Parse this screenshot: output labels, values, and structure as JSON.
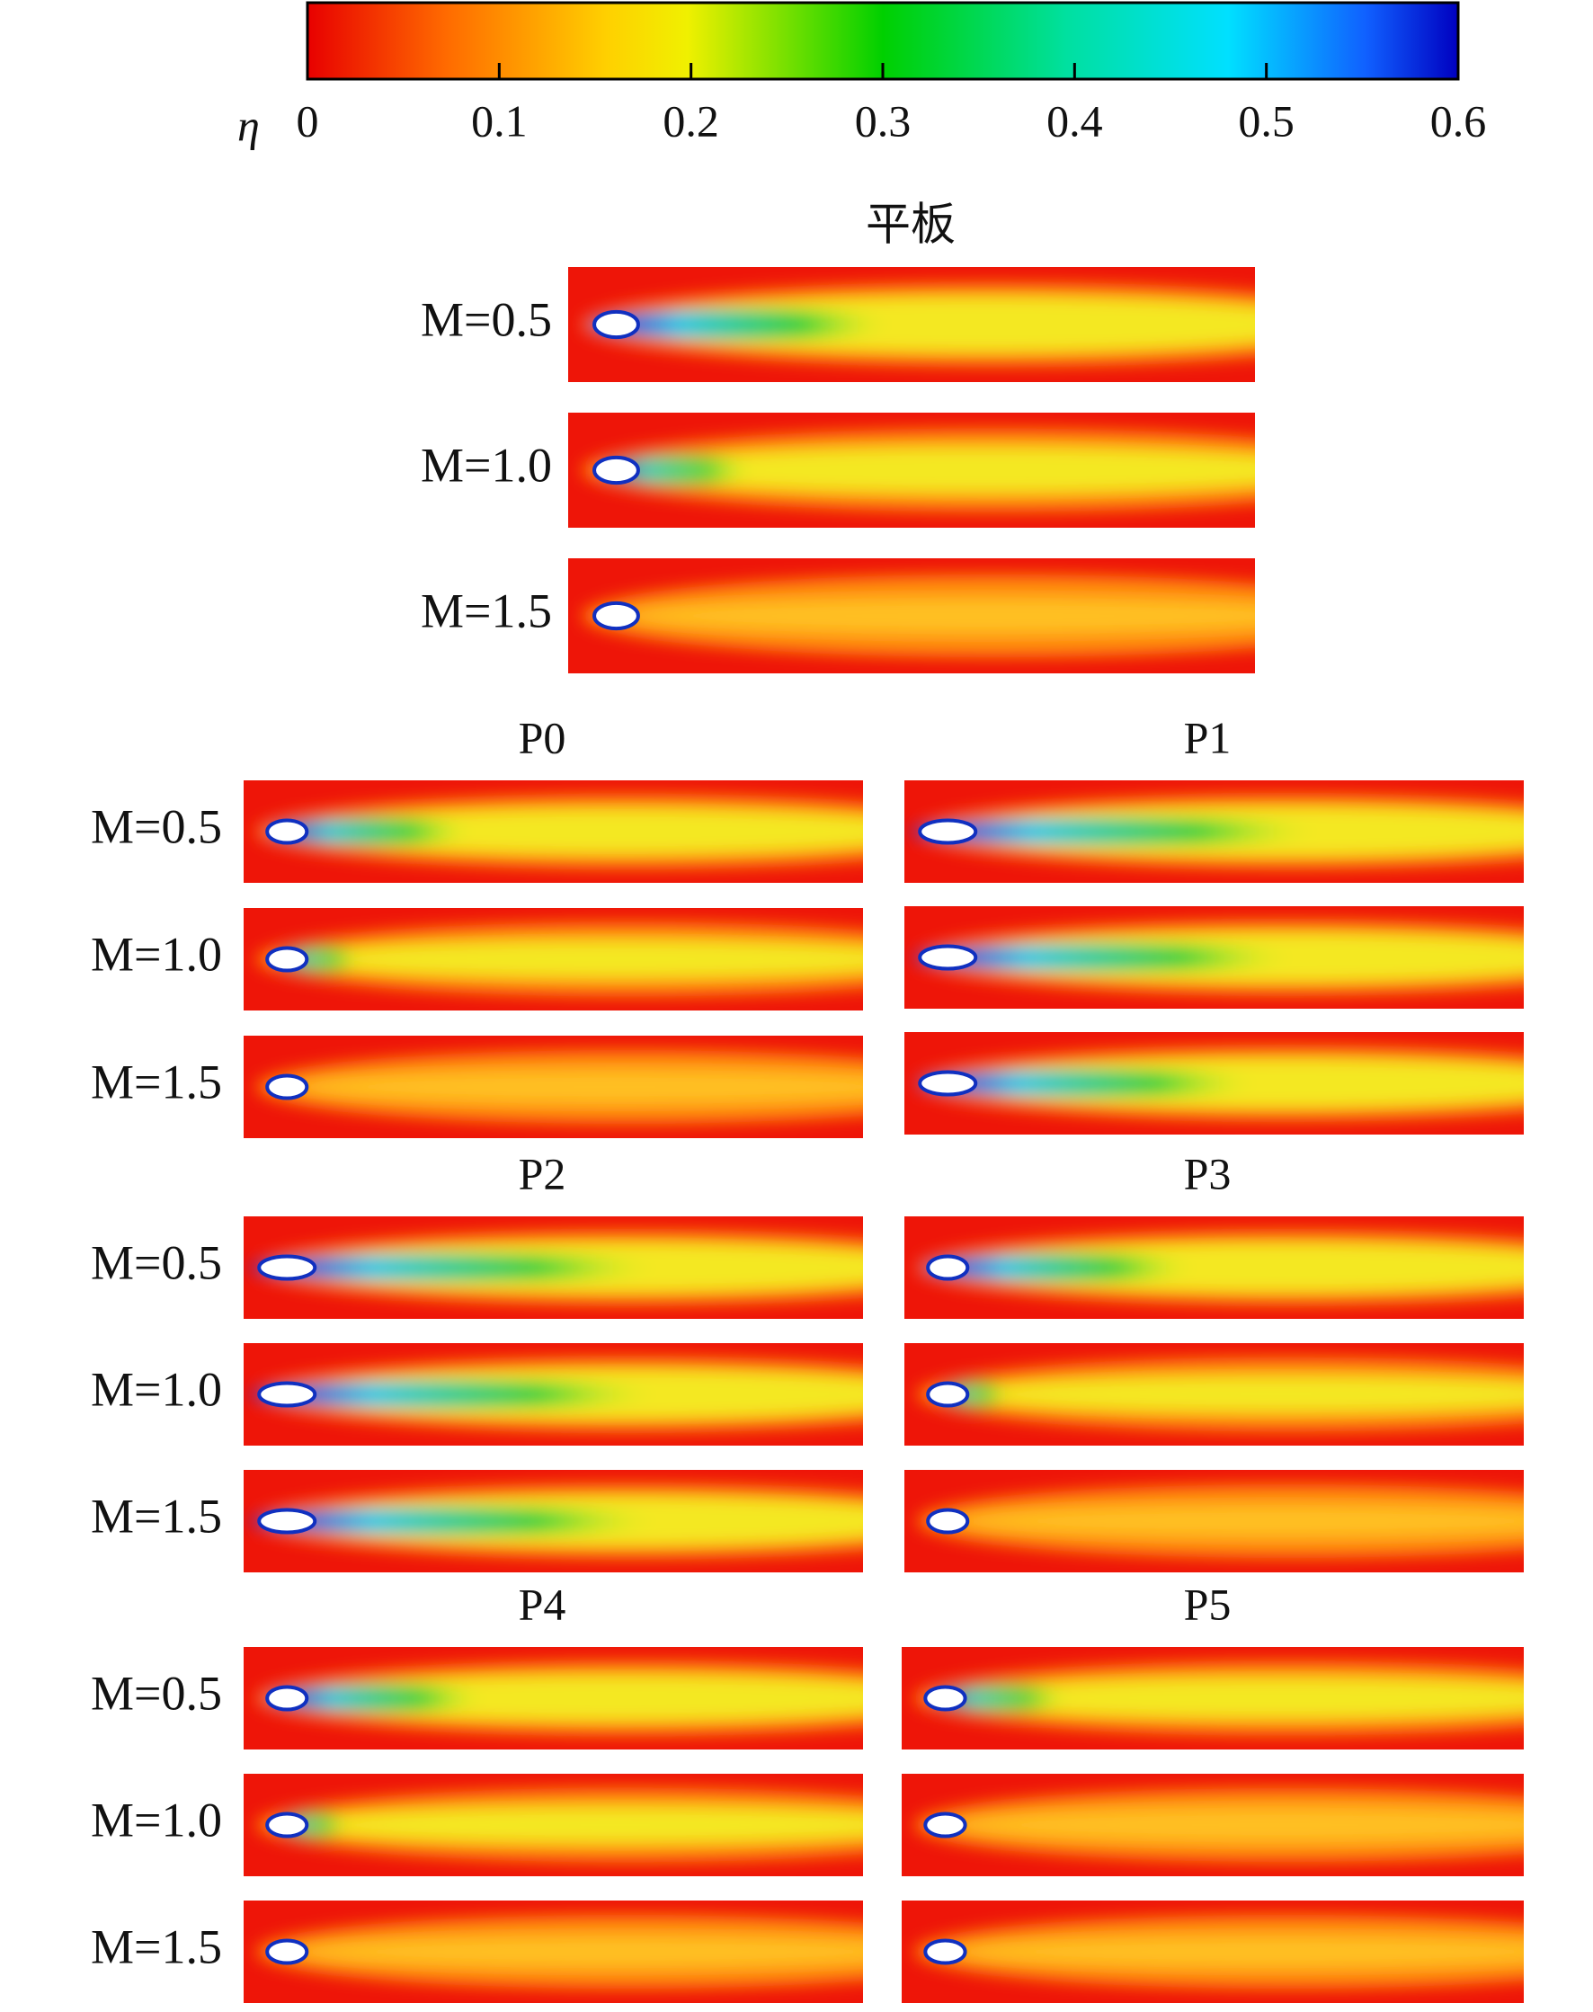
{
  "colorbar": {
    "symbol": "η",
    "ticks": [
      0,
      0.1,
      0.2,
      0.3,
      0.4,
      0.5,
      0.6
    ]
  },
  "groups": [
    {
      "title": "平板",
      "rows": [
        "M=0.5",
        "M=1.0",
        "M=1.5"
      ]
    },
    {
      "title": "P0",
      "rows": [
        "M=0.5",
        "M=1.0",
        "M=1.5"
      ]
    },
    {
      "title": "P1"
    },
    {
      "title": "P2",
      "rows": [
        "M=0.5",
        "M=1.0",
        "M=1.5"
      ]
    },
    {
      "title": "P3"
    },
    {
      "title": "P4",
      "rows": [
        "M=0.5",
        "M=1.0",
        "M=1.5"
      ]
    },
    {
      "title": "P5"
    }
  ]
}
